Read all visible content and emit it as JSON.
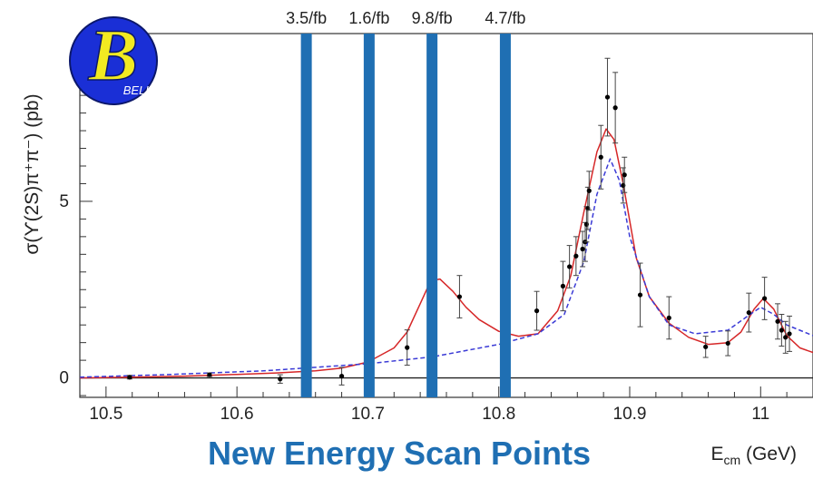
{
  "chart_data": {
    "type": "scatter",
    "title": "",
    "xlabel_main": "E",
    "xlabel_sub": "cm",
    "xlabel_unit": " (GeV)",
    "ylabel": "σ(ϒ(2S)π⁺π⁻) (pb)",
    "xlim": [
      10.48,
      11.04
    ],
    "ylim": [
      -0.55,
      9.75
    ],
    "x_ticks": [
      10.5,
      10.6,
      10.7,
      10.8,
      10.9,
      11
    ],
    "x_tick_labels": [
      "10.5",
      "10.6",
      "10.7",
      "10.8",
      "10.9",
      "11"
    ],
    "y_ticks": [
      0,
      5
    ],
    "y_tick_labels": [
      "0",
      "5"
    ],
    "grid": false,
    "data_points": [
      {
        "x": 10.518,
        "y": 0.02,
        "err": 0.05
      },
      {
        "x": 10.579,
        "y": 0.09,
        "err": 0.05
      },
      {
        "x": 10.633,
        "y": -0.03,
        "err": 0.12
      },
      {
        "x": 10.68,
        "y": 0.05,
        "err": 0.25
      },
      {
        "x": 10.73,
        "y": 0.86,
        "err": 0.5
      },
      {
        "x": 10.77,
        "y": 2.3,
        "err": 0.6
      },
      {
        "x": 10.829,
        "y": 1.9,
        "err": 0.55
      },
      {
        "x": 10.849,
        "y": 2.6,
        "err": 0.7
      },
      {
        "x": 10.854,
        "y": 3.15,
        "err": 0.6
      },
      {
        "x": 10.859,
        "y": 3.45,
        "err": 0.55
      },
      {
        "x": 10.864,
        "y": 3.65,
        "err": 0.5
      },
      {
        "x": 10.866,
        "y": 3.85,
        "err": 0.55
      },
      {
        "x": 10.867,
        "y": 4.35,
        "err": 0.5
      },
      {
        "x": 10.868,
        "y": 4.8,
        "err": 0.6
      },
      {
        "x": 10.869,
        "y": 5.3,
        "err": 0.55
      },
      {
        "x": 10.878,
        "y": 6.25,
        "err": 0.9
      },
      {
        "x": 10.883,
        "y": 7.95,
        "err": 1.1
      },
      {
        "x": 10.889,
        "y": 7.65,
        "err": 1.0
      },
      {
        "x": 10.895,
        "y": 5.45,
        "err": 0.5
      },
      {
        "x": 10.896,
        "y": 5.75,
        "err": 0.5
      },
      {
        "x": 10.908,
        "y": 2.35,
        "err": 0.9
      },
      {
        "x": 10.93,
        "y": 1.7,
        "err": 0.6
      },
      {
        "x": 10.958,
        "y": 0.88,
        "err": 0.3
      },
      {
        "x": 10.975,
        "y": 0.98,
        "err": 0.35
      },
      {
        "x": 10.991,
        "y": 1.85,
        "err": 0.55
      },
      {
        "x": 11.003,
        "y": 2.25,
        "err": 0.6
      },
      {
        "x": 11.013,
        "y": 1.6,
        "err": 0.5
      },
      {
        "x": 11.016,
        "y": 1.35,
        "err": 0.45
      },
      {
        "x": 11.019,
        "y": 1.15,
        "err": 0.45
      },
      {
        "x": 11.022,
        "y": 1.25,
        "err": 0.5
      }
    ],
    "fit_curves": [
      {
        "style": "solid",
        "color": "#d62728",
        "x": [
          10.48,
          10.52,
          10.56,
          10.6,
          10.63,
          10.66,
          10.68,
          10.7,
          10.72,
          10.73,
          10.74,
          10.748,
          10.755,
          10.765,
          10.775,
          10.785,
          10.8,
          10.815,
          10.83,
          10.845,
          10.855,
          10.865,
          10.875,
          10.882,
          10.888,
          10.895,
          10.905,
          10.915,
          10.93,
          10.945,
          10.96,
          10.975,
          10.985,
          10.995,
          11.002,
          11.01,
          11.02,
          11.03,
          11.04
        ],
        "y": [
          0.0,
          0.02,
          0.05,
          0.1,
          0.14,
          0.2,
          0.28,
          0.45,
          0.85,
          1.3,
          2.1,
          2.75,
          2.8,
          2.45,
          2.0,
          1.65,
          1.32,
          1.18,
          1.25,
          1.9,
          2.9,
          4.7,
          6.4,
          7.05,
          6.75,
          5.5,
          3.4,
          2.3,
          1.55,
          1.15,
          0.95,
          1.0,
          1.3,
          1.95,
          2.25,
          1.95,
          1.2,
          0.85,
          0.72
        ]
      },
      {
        "style": "dashed",
        "color": "#3b3bd6",
        "x": [
          10.48,
          10.55,
          10.62,
          10.7,
          10.75,
          10.8,
          10.83,
          10.85,
          10.865,
          10.875,
          10.885,
          10.892,
          10.9,
          10.915,
          10.93,
          10.95,
          10.975,
          10.99,
          11.0,
          11.01,
          11.02,
          11.04
        ],
        "y": [
          0.02,
          0.1,
          0.2,
          0.4,
          0.6,
          0.95,
          1.25,
          1.8,
          3.3,
          5.2,
          6.2,
          5.6,
          4.0,
          2.3,
          1.5,
          1.25,
          1.35,
          1.75,
          2.0,
          1.8,
          1.5,
          1.2
        ]
      }
    ],
    "luminosity_markers": [
      {
        "x": 10.653,
        "label": "3.5/fb"
      },
      {
        "x": 10.701,
        "label": "1.6/fb"
      },
      {
        "x": 10.749,
        "label": "9.8/fb"
      },
      {
        "x": 10.805,
        "label": "4.7/fb"
      }
    ],
    "marker_color": "#1f6fb3",
    "caption": "New Energy Scan Points"
  },
  "logo": {
    "letter": "B",
    "text": "BELLE",
    "bg_color": "#1a2fd6",
    "letter_color": "#f2ea21"
  }
}
